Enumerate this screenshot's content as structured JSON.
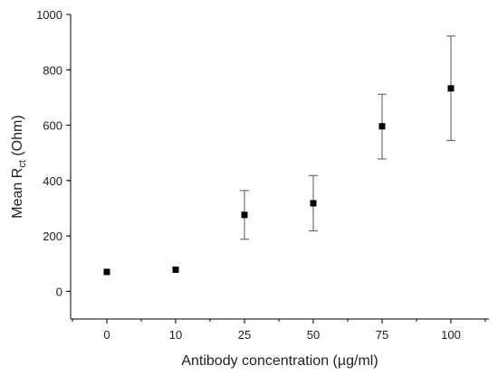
{
  "chart_data": {
    "type": "scatter",
    "title": "",
    "xlabel": "Antibody concentration (µg/ml)",
    "ylabel_prefix": "Mean R",
    "ylabel_subscript": "ct",
    "ylabel_suffix": " (Ohm)",
    "categories": [
      "0",
      "10",
      "25",
      "50",
      "75",
      "100"
    ],
    "values": [
      70,
      78,
      276,
      318,
      596,
      733
    ],
    "error_low": [
      70,
      78,
      188,
      218,
      478,
      545
    ],
    "error_high": [
      70,
      78,
      364,
      418,
      712,
      922
    ],
    "ylim": [
      -100,
      1000
    ],
    "yticks": [
      0,
      200,
      400,
      600,
      800,
      1000
    ],
    "grid": false,
    "legend": "none",
    "marker": "square",
    "marker_color": "#000000"
  }
}
